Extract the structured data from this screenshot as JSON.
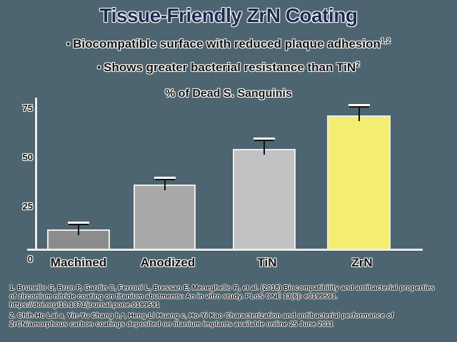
{
  "slide": {
    "title": "Tissue-Friendly ZrN Coating",
    "bullet_char": "•",
    "bullets": [
      {
        "text": "Biocompatible surface with reduced plaque adhesion",
        "sup": "1,2"
      },
      {
        "text": "Shows greater bacterial resistance than TiN",
        "sup": "2"
      }
    ]
  },
  "chart_data": {
    "type": "bar",
    "title": "% of Dead S. Sanguinis",
    "categories": [
      "Machined",
      "Anodized",
      "TiN",
      "ZrN"
    ],
    "values": [
      13,
      36,
      54,
      71
    ],
    "errors": [
      2,
      2,
      4,
      4
    ],
    "bar_colors": [
      "#8c8c8c",
      "#a8a8a8",
      "#c2c2c4",
      "#f3ee71"
    ],
    "y_ticks": [
      0,
      25,
      50,
      75
    ],
    "ylim": [
      0,
      80
    ],
    "xlabel": "",
    "ylabel": "",
    "grid": false,
    "legend": false
  },
  "footnotes": [
    "1. Brunello G, Brun P, Gardin C, Ferroni L, Bressan E, Meneghello R, et al. (2018) Biocompatibility and antibacterial properties of zirconium nitride coating on titanium abutments: An in vitro study. PLoS ONE 13(6): e0199591. https://doi.org/10.1371/journal.pone.0199591",
    "2. Chih-Ho Lai a, Yin-Yu Chang b,*, Heng-Li Huang c, Ho-Yi Kao Characterization and antibacterial performance of ZrCN/amorphous carbon coatings deposited on titanium implants available online 25 June 2011"
  ],
  "colors": {
    "background": "#4d6570",
    "title": "#1e2b52",
    "text": "#111111",
    "axis": "#ececec",
    "error_bar": "#111111",
    "error_bar_highlight": "#ffffff"
  }
}
